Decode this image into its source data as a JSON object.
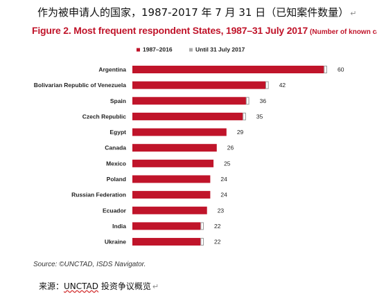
{
  "caption_top": "作为被申请人的国家，1987-2017 年 7 月 31 日（已知案件数量）",
  "paragraph_mark": "↵",
  "figure": {
    "title": "Figure 2. Most frequent respondent States, 1987–31 July 2017",
    "subtitle": "(Number of known cases)"
  },
  "colors": {
    "title": "#c0142a",
    "bar_1987_2016": "#c0142a",
    "bar_until_2017": "#ffffff",
    "bar_until_2017_stroke": "#9a9a9a"
  },
  "chart_data": {
    "type": "bar",
    "orientation": "horizontal",
    "stacked": true,
    "categories": [
      "Argentina",
      "Bolivarian Republic of Venezuela",
      "Spain",
      "Czech Republic",
      "Egypt",
      "Canada",
      "Mexico",
      "Poland",
      "Russian Federation",
      "Ecuador",
      "India",
      "Ukraine"
    ],
    "series": [
      {
        "name": "1987–2016",
        "values": [
          59,
          41,
          35,
          34,
          29,
          26,
          25,
          24,
          24,
          23,
          21,
          21
        ]
      },
      {
        "name": "Until 31 July 2017",
        "values": [
          1,
          1,
          1,
          1,
          0,
          0,
          0,
          0,
          0,
          0,
          1,
          1
        ]
      }
    ],
    "totals": [
      60,
      42,
      36,
      35,
      29,
      26,
      25,
      24,
      24,
      23,
      22,
      22
    ],
    "legend_position": "top",
    "grid": false,
    "xlim": [
      0,
      60
    ]
  },
  "source": "Source: ©UNCTAD, ISDS Navigator.",
  "caption_bottom": {
    "prefix": "来源：",
    "underlined": "UNCTAD",
    "rest": " 投资争议概览"
  }
}
